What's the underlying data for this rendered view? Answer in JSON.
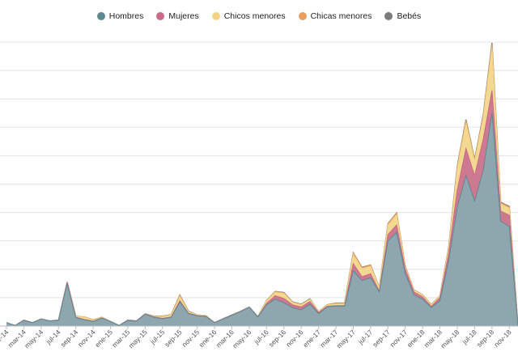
{
  "chart_data": {
    "type": "area",
    "stacked": true,
    "title": "",
    "xlabel": "",
    "ylabel": "",
    "grid": true,
    "legend_position": "top-center",
    "x_tick_labels": [
      "ene-14",
      "mar-14",
      "may-14",
      "jul-14",
      "sep-14",
      "nov-14",
      "ene-15",
      "mar-15",
      "may-15",
      "jul-15",
      "sep-15",
      "nov-15",
      "ene-16",
      "mar-16",
      "may-16",
      "jul-16",
      "sep-16",
      "nov-16",
      "ene-17",
      "mar-17",
      "may-17",
      "jul-17",
      "sep-17",
      "nov-17",
      "ene-18",
      "mar-18",
      "may-18",
      "jul-18",
      "sep-18",
      "nov-18"
    ],
    "categories": [
      "ene-14",
      "feb-14",
      "mar-14",
      "abr-14",
      "may-14",
      "jun-14",
      "jul-14",
      "ago-14",
      "sep-14",
      "oct-14",
      "nov-14",
      "dic-14",
      "ene-15",
      "feb-15",
      "mar-15",
      "abr-15",
      "may-15",
      "jun-15",
      "jul-15",
      "ago-15",
      "sep-15",
      "oct-15",
      "nov-15",
      "dic-15",
      "ene-16",
      "feb-16",
      "mar-16",
      "abr-16",
      "may-16",
      "jun-16",
      "jul-16",
      "ago-16",
      "sep-16",
      "oct-16",
      "nov-16",
      "dic-16",
      "ene-17",
      "feb-17",
      "mar-17",
      "abr-17",
      "may-17",
      "jun-17",
      "jul-17",
      "ago-17",
      "sep-17",
      "oct-17",
      "nov-17",
      "dic-17",
      "ene-18",
      "feb-18",
      "mar-18",
      "abr-18",
      "may-18",
      "jun-18",
      "jul-18",
      "ago-18",
      "sep-18",
      "oct-18",
      "nov-18",
      "dic-18"
    ],
    "ylim": [
      0,
      100
    ],
    "series": [
      {
        "name": "Hombres",
        "color": "#5f8790",
        "values": [
          1.2,
          0.2,
          2,
          1.2,
          2.5,
          1.8,
          2,
          15,
          3,
          2.2,
          1.6,
          2.8,
          1.6,
          0.2,
          2,
          1.7,
          4.2,
          3.1,
          2.6,
          3.1,
          8.5,
          4.4,
          3.6,
          3.4,
          1.2,
          2.5,
          3.8,
          5.1,
          6.6,
          3.2,
          7.5,
          9.5,
          8.2,
          6.5,
          5.7,
          7.7,
          4.4,
          6.8,
          7,
          7,
          19.5,
          16,
          17,
          12,
          30,
          33,
          18.5,
          11,
          9.5,
          6.5,
          9,
          23,
          42,
          53,
          44,
          55,
          75,
          37,
          35,
          0
        ]
      },
      {
        "name": "Mujeres",
        "color": "#c96a86",
        "values": [
          0,
          0,
          0.1,
          0,
          0,
          0,
          0.1,
          0.5,
          0.1,
          0.1,
          0.1,
          0.1,
          0,
          0,
          0.1,
          0.1,
          0.1,
          0.1,
          0.1,
          0.1,
          0.4,
          0.1,
          0.1,
          0.1,
          0,
          0.1,
          0.1,
          0.1,
          0.1,
          0.1,
          0.5,
          1.2,
          1.5,
          1,
          1,
          0.9,
          0.4,
          0.2,
          0.2,
          0.2,
          2.5,
          1.4,
          1.4,
          0.3,
          2.2,
          2.6,
          1.5,
          1,
          0.8,
          0.4,
          1,
          2.5,
          6,
          9.5,
          9,
          11,
          8,
          3.5,
          4,
          0
        ]
      },
      {
        "name": "Chicos menores",
        "color": "#f2d485",
        "values": [
          0,
          0,
          0,
          0,
          0,
          0,
          0,
          0,
          0.4,
          0.8,
          0.4,
          0.2,
          0,
          0,
          0,
          0,
          0,
          0.2,
          0.6,
          0.6,
          1.5,
          0.5,
          0.2,
          0.2,
          0,
          0,
          0,
          0,
          0,
          0,
          0.8,
          1.2,
          1.8,
          0.8,
          0.8,
          0.8,
          0.3,
          0.4,
          0.6,
          0.6,
          3.2,
          2.8,
          2.6,
          1.2,
          3.3,
          3.6,
          0.9,
          0.6,
          0.6,
          0.6,
          0.6,
          1.8,
          7.5,
          9,
          5,
          7.5,
          15,
          2.5,
          2.5,
          0
        ]
      },
      {
        "name": "Chicas menores",
        "color": "#e8a060",
        "values": [
          0,
          0,
          0,
          0,
          0,
          0,
          0,
          0,
          0,
          0.1,
          0.1,
          0,
          0,
          0,
          0,
          0,
          0,
          0.1,
          0.2,
          0.2,
          0.4,
          0.1,
          0,
          0,
          0,
          0,
          0,
          0,
          0,
          0,
          0.2,
          0.2,
          0.2,
          0.1,
          0.1,
          0.1,
          0,
          0.1,
          0.2,
          0.2,
          0.5,
          0.4,
          0.4,
          0.1,
          0.5,
          0.5,
          0.1,
          0.1,
          0.1,
          0.1,
          0.1,
          0.3,
          0.8,
          0.9,
          0.5,
          0.8,
          1.2,
          0.4,
          0.4,
          0
        ]
      },
      {
        "name": "Bebés",
        "color": "#7a7a7a",
        "values": [
          0,
          0,
          0,
          0,
          0,
          0,
          0,
          0,
          0,
          0,
          0,
          0,
          0,
          0,
          0,
          0,
          0,
          0,
          0,
          0,
          0.1,
          0.1,
          0,
          0,
          0,
          0,
          0,
          0,
          0,
          0,
          0,
          0.1,
          0.1,
          0.1,
          0.1,
          0.1,
          0,
          0,
          0.1,
          0.1,
          0.1,
          0.1,
          0.1,
          0,
          0.1,
          0.1,
          0.1,
          0,
          0,
          0,
          0,
          0.1,
          0.2,
          0.3,
          0.2,
          0.3,
          0.5,
          0.2,
          0.2,
          0
        ]
      }
    ]
  }
}
